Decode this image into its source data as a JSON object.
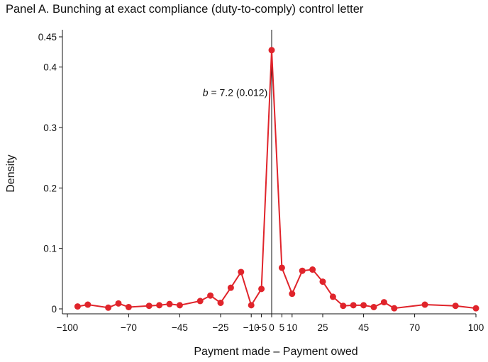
{
  "panel_title": "Panel A. Bunching at exact compliance (duty-to-comply) control letter",
  "chart_data": {
    "type": "line",
    "title": "Panel A. Bunching at exact compliance (duty-to-comply) control letter",
    "xlabel": "Payment made – Payment owed",
    "ylabel": "Density",
    "xlim": [
      -100,
      100
    ],
    "ylim": [
      0,
      0.45
    ],
    "x_ticks": [
      -100,
      -70,
      -45,
      -25,
      -10,
      -5,
      0,
      5,
      10,
      25,
      45,
      70,
      100
    ],
    "x_tick_labels": [
      "−100",
      "−70",
      "−45",
      "−25",
      "−10",
      "−5",
      "0",
      "5",
      "10",
      "25",
      "45",
      "70",
      "100"
    ],
    "y_ticks": [
      0,
      0.1,
      0.2,
      0.3,
      0.4,
      0.45
    ],
    "y_tick_labels": [
      "0",
      "0.1",
      "0.2",
      "0.3",
      "0.4",
      "0.45"
    ],
    "vertical_line_at": 0,
    "grid": false,
    "annotation": {
      "text_italic": "b",
      "text_rest": " = 7.2 (0.012)",
      "x": -2,
      "y": 0.352
    },
    "color": "#e0242b",
    "series": [
      {
        "x": [
          -95,
          -90,
          -80,
          -75,
          -70,
          -60,
          -55,
          -50,
          -45,
          -35,
          -30,
          -25,
          -20,
          -15,
          -10,
          -5,
          0,
          5,
          10,
          15,
          20,
          25,
          30,
          35,
          40,
          45,
          50,
          55,
          60,
          75,
          90,
          100
        ],
        "y": [
          0.004,
          0.007,
          0.002,
          0.009,
          0.003,
          0.005,
          0.006,
          0.008,
          0.006,
          0.013,
          0.022,
          0.01,
          0.035,
          0.061,
          0.006,
          0.033,
          0.428,
          0.068,
          0.025,
          0.063,
          0.065,
          0.045,
          0.02,
          0.005,
          0.006,
          0.006,
          0.003,
          0.011,
          0.001,
          0.007,
          0.005,
          0.001
        ]
      }
    ]
  }
}
